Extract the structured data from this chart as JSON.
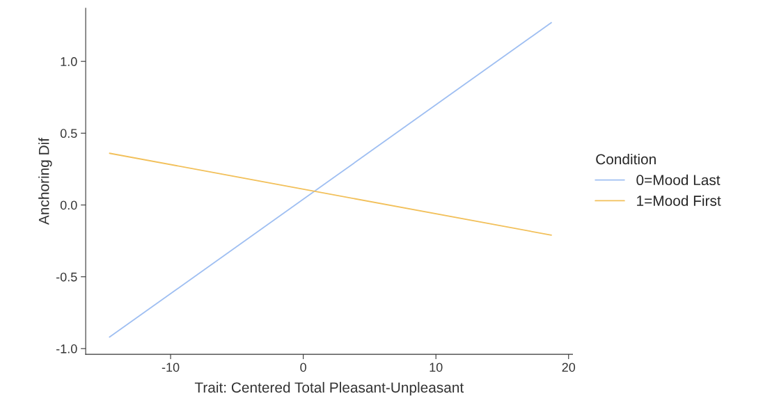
{
  "chart_data": {
    "type": "line",
    "xlabel": "Trait: Centered Total Pleasant-Unpleasant",
    "ylabel": "Anchoring Dif",
    "legend_title": "Condition",
    "xlim": [
      -16.4,
      20.3
    ],
    "xticks": [
      -10,
      0,
      10,
      20
    ],
    "ylim": [
      -1.04,
      1.37
    ],
    "yticks": [
      {
        "value": -1.0,
        "label": "-1.0"
      },
      {
        "value": -0.5,
        "label": "-0.5"
      },
      {
        "value": 0.0,
        "label": "0.0"
      },
      {
        "value": 0.5,
        "label": "0.5"
      },
      {
        "value": 1.0,
        "label": "1.0"
      }
    ],
    "x": [
      -14.6,
      18.7
    ],
    "grid": false,
    "legend": "right",
    "marker": "none",
    "line_style": "solid",
    "series": [
      {
        "name": "0=Mood Last",
        "color": "#9fbff2",
        "values": [
          -0.92,
          1.27
        ]
      },
      {
        "name": "1=Mood First",
        "color": "#f2c05a",
        "values": [
          0.36,
          -0.21
        ]
      }
    ]
  }
}
